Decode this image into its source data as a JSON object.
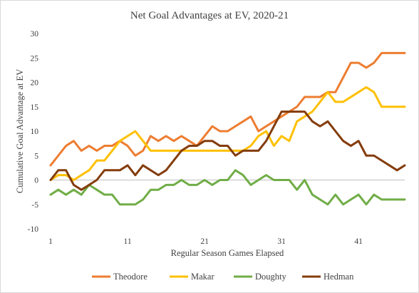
{
  "chart_data": {
    "type": "line",
    "title": "Net Goal Advantages at EV, 2020-21",
    "xlabel": "Regular Season Games Elapsed",
    "ylabel": "Cumulative Goal Advantage at EV",
    "xlim": [
      1,
      47
    ],
    "ylim": [
      -10,
      30
    ],
    "x_ticks": [
      1,
      11,
      21,
      31,
      41
    ],
    "y_ticks": [
      -10,
      -5,
      0,
      5,
      10,
      15,
      20,
      25,
      30
    ],
    "grid": "none",
    "legend": "bottom",
    "series": [
      {
        "name": "Theodore",
        "color": "#ED7D31",
        "x": [
          1,
          2,
          3,
          4,
          5,
          6,
          7,
          8,
          9,
          10,
          11,
          12,
          13,
          14,
          15,
          16,
          17,
          18,
          19,
          20,
          21,
          22,
          23,
          24,
          25,
          26,
          27,
          28,
          29,
          30,
          31,
          32,
          33,
          34,
          35,
          36,
          37,
          38,
          39,
          40,
          41,
          42,
          43,
          44,
          45,
          46,
          47
        ],
        "values": [
          3,
          5,
          7,
          8,
          6,
          7,
          6,
          7,
          7,
          8,
          7,
          5,
          6,
          9,
          8,
          9,
          8,
          9,
          8,
          7,
          9,
          11,
          10,
          10,
          11,
          12,
          13,
          10,
          11,
          12,
          13,
          14,
          15,
          17,
          17,
          17,
          18,
          18,
          21,
          24,
          24,
          23,
          24,
          26,
          26,
          26,
          26
        ]
      },
      {
        "name": "Makar",
        "color": "#FFC000",
        "x": [
          1,
          2,
          3,
          4,
          5,
          6,
          7,
          8,
          9,
          10,
          11,
          12,
          13,
          14,
          15,
          16,
          17,
          18,
          19,
          20,
          21,
          22,
          23,
          24,
          25,
          26,
          27,
          28,
          29,
          30,
          31,
          32,
          33,
          34,
          35,
          36,
          37,
          38,
          39,
          40,
          41,
          42,
          43,
          44,
          45,
          46,
          47
        ],
        "values": [
          0,
          1,
          1,
          0,
          1,
          2,
          4,
          4,
          6,
          8,
          9,
          10,
          8,
          6,
          6,
          6,
          6,
          6,
          6,
          6,
          6,
          6,
          6,
          6,
          6,
          6,
          7,
          9,
          10,
          7,
          9,
          8,
          12,
          13,
          14,
          16,
          18,
          16,
          16,
          17,
          18,
          19,
          18,
          15,
          15,
          15,
          15
        ]
      },
      {
        "name": "Doughty",
        "color": "#70AD47",
        "x": [
          1,
          2,
          3,
          4,
          5,
          6,
          7,
          8,
          9,
          10,
          11,
          12,
          13,
          14,
          15,
          16,
          17,
          18,
          19,
          20,
          21,
          22,
          23,
          24,
          25,
          26,
          27,
          28,
          29,
          30,
          31,
          32,
          33,
          34,
          35,
          36,
          37,
          38,
          39,
          40,
          41,
          42,
          43,
          44,
          45,
          46,
          47
        ],
        "values": [
          -3,
          -2,
          -3,
          -2,
          -3,
          -1,
          -2,
          -3,
          -3,
          -5,
          -5,
          -5,
          -4,
          -2,
          -2,
          -1,
          -1,
          0,
          -1,
          -1,
          0,
          -1,
          0,
          0,
          2,
          1,
          -1,
          0,
          1,
          0,
          0,
          0,
          -2,
          0,
          -3,
          -4,
          -5,
          -3,
          -5,
          -4,
          -3,
          -5,
          -3,
          -4,
          -4,
          -4,
          -4
        ]
      },
      {
        "name": "Hedman",
        "color": "#843C0C",
        "x": [
          1,
          2,
          3,
          4,
          5,
          6,
          7,
          8,
          9,
          10,
          11,
          12,
          13,
          14,
          15,
          16,
          17,
          18,
          19,
          20,
          21,
          22,
          23,
          24,
          25,
          26,
          27,
          28,
          29,
          30,
          31,
          32,
          33,
          34,
          35,
          36,
          37,
          38,
          39,
          40,
          41,
          42,
          43,
          44,
          45,
          46,
          47
        ],
        "values": [
          0,
          2,
          2,
          -1,
          -2,
          -1,
          0,
          2,
          2,
          2,
          3,
          1,
          3,
          2,
          1,
          2,
          4,
          6,
          7,
          7,
          8,
          8,
          7,
          7,
          5,
          6,
          6,
          6,
          8,
          11,
          14,
          14,
          14,
          14,
          12,
          11,
          12,
          10,
          8,
          7,
          8,
          5,
          5,
          4,
          3,
          2,
          3
        ]
      }
    ]
  }
}
